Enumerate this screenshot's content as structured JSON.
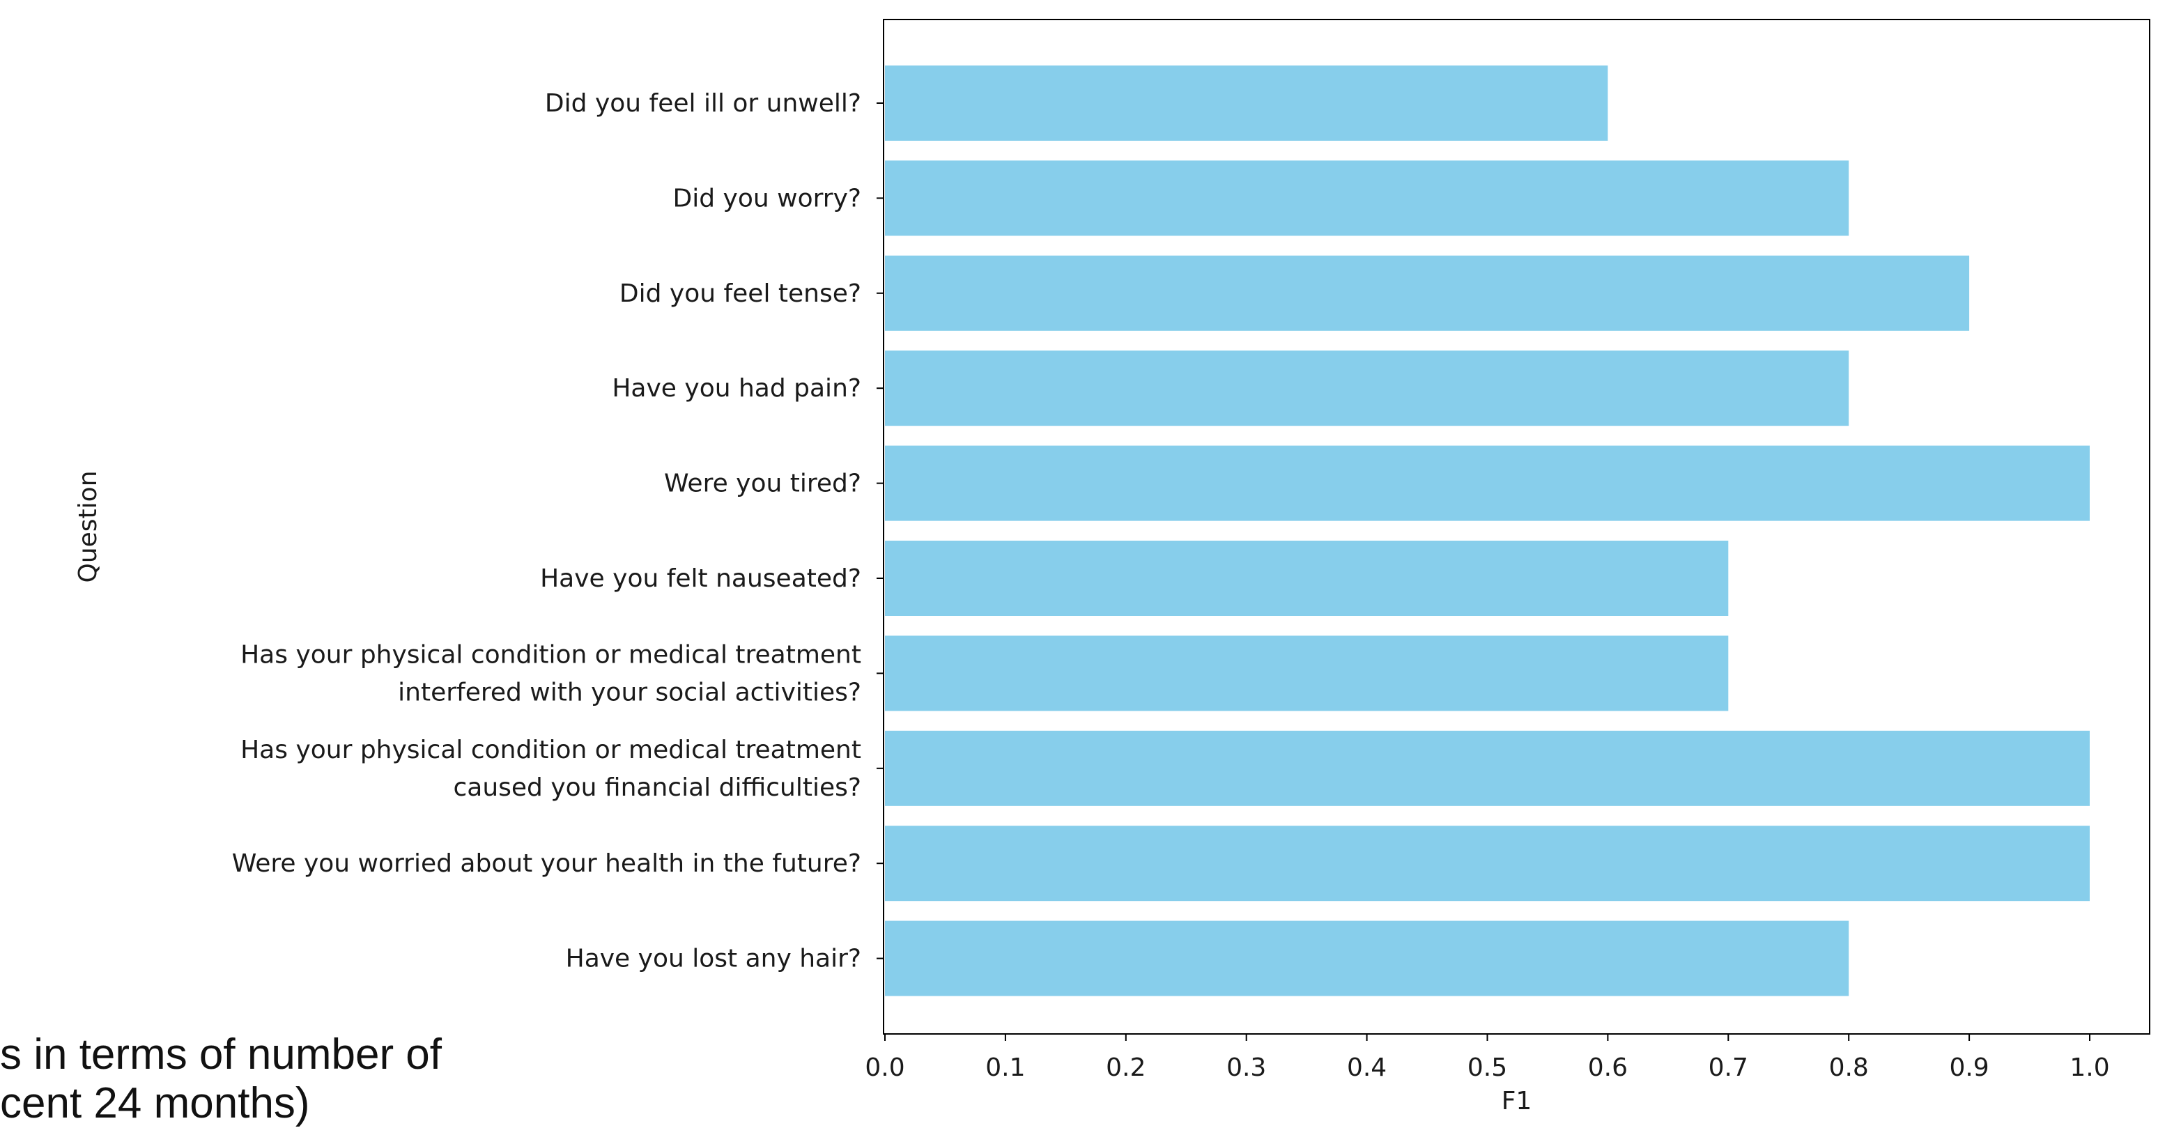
{
  "chart_data": {
    "type": "bar",
    "orientation": "horizontal",
    "title": "",
    "xlabel": "F1",
    "ylabel": "Question",
    "xlim": [
      0.0,
      1.05
    ],
    "xticks": [
      "0.0",
      "0.1",
      "0.2",
      "0.3",
      "0.4",
      "0.5",
      "0.6",
      "0.7",
      "0.8",
      "0.9",
      "1.0"
    ],
    "grid": false,
    "bar_color": "#87CEEB",
    "categories": [
      [
        "Did you feel ill or unwell?"
      ],
      [
        "Did you worry?"
      ],
      [
        "Did you feel tense?"
      ],
      [
        "Have you had pain?"
      ],
      [
        "Were you tired?"
      ],
      [
        "Have you felt nauseated?"
      ],
      [
        "Has your physical condition or medical treatment",
        "interfered with your social activities?"
      ],
      [
        "Has your physical condition or medical treatment",
        "caused you financial difficulties?"
      ],
      [
        "Were you worried about your health in the future?"
      ],
      [
        "Have you lost any hair?"
      ]
    ],
    "values": [
      0.6,
      0.8,
      0.9,
      0.8,
      1.0,
      0.7,
      0.7,
      1.0,
      1.0,
      0.8
    ]
  },
  "slide_text": {
    "line1": "s in terms of number of",
    "line2": "cent 24 months)"
  }
}
